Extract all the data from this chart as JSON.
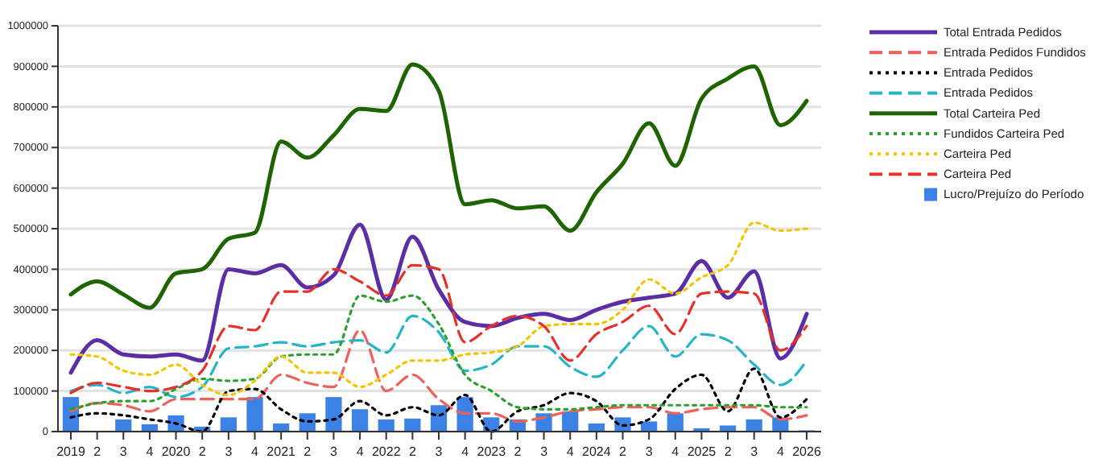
{
  "chart_data": {
    "type": "line",
    "categories": [
      "2019",
      "2",
      "3",
      "4",
      "2020",
      "2",
      "3",
      "4",
      "2021",
      "2",
      "3",
      "4",
      "2022",
      "2",
      "3",
      "4",
      "2023",
      "2",
      "3",
      "4",
      "2024",
      "2",
      "3",
      "4",
      "2025",
      "2",
      "3",
      "4",
      "2026"
    ],
    "ylim": [
      0,
      1000000
    ],
    "yticks": [
      0,
      100000,
      200000,
      300000,
      400000,
      500000,
      600000,
      700000,
      800000,
      900000,
      1000000
    ],
    "grid": "y",
    "legend": "right",
    "series": [
      {
        "name": "Total Entrada Pedidos",
        "color": "#5b2ea6",
        "line_style": "solid",
        "values": [
          145000,
          225000,
          190000,
          185000,
          190000,
          175000,
          400000,
          390000,
          410000,
          355000,
          385000,
          510000,
          325000,
          480000,
          350000,
          270000,
          260000,
          280000,
          290000,
          275000,
          300000,
          320000,
          330000,
          340000,
          420000,
          330000,
          395000,
          180000,
          290000
        ]
      },
      {
        "name": "Entrada Pedidos Fundidos",
        "color": "#f0605a",
        "line_style": "dashed",
        "values": [
          50000,
          70000,
          65000,
          50000,
          80000,
          80000,
          80000,
          80000,
          140000,
          120000,
          110000,
          250000,
          100000,
          140000,
          80000,
          45000,
          45000,
          25000,
          35000,
          50000,
          55000,
          60000,
          60000,
          45000,
          55000,
          60000,
          60000,
          30000,
          40000
        ]
      },
      {
        "name": "Entrada Pedidos",
        "color": "#000000",
        "line_style": "dotted",
        "values": [
          35000,
          45000,
          40000,
          30000,
          20000,
          0,
          100000,
          105000,
          55000,
          25000,
          30000,
          75000,
          40000,
          60000,
          40000,
          90000,
          0,
          50000,
          65000,
          95000,
          75000,
          15000,
          30000,
          105000,
          140000,
          50000,
          155000,
          35000,
          80000
        ]
      },
      {
        "name": "Entrada Pedidos",
        "color": "#26b5c7",
        "line_style": "dashed",
        "values": [
          100000,
          115000,
          95000,
          110000,
          85000,
          110000,
          205000,
          210000,
          220000,
          210000,
          220000,
          225000,
          195000,
          285000,
          245000,
          150000,
          165000,
          210000,
          210000,
          160000,
          135000,
          200000,
          260000,
          185000,
          240000,
          225000,
          165000,
          115000,
          175000
        ]
      },
      {
        "name": "Total Carteira Ped",
        "color": "#1e6400",
        "line_style": "solid",
        "values": [
          338000,
          370000,
          338000,
          305000,
          390000,
          400000,
          475000,
          490000,
          715000,
          675000,
          730000,
          795000,
          790000,
          905000,
          840000,
          560000,
          570000,
          550000,
          555000,
          495000,
          590000,
          660000,
          760000,
          655000,
          820000,
          870000,
          900000,
          755000,
          815000
        ]
      },
      {
        "name": "Fundidos Carteira Ped",
        "color": "#2ca02c",
        "line_style": "dotted",
        "values": [
          55000,
          70000,
          75000,
          75000,
          105000,
          130000,
          125000,
          130000,
          185000,
          190000,
          190000,
          335000,
          320000,
          335000,
          265000,
          140000,
          100000,
          60000,
          55000,
          55000,
          60000,
          65000,
          65000,
          65000,
          65000,
          65000,
          65000,
          60000,
          60000
        ]
      },
      {
        "name": "Carteira Ped",
        "color": "#f5c400",
        "line_style": "dotted",
        "values": [
          190000,
          185000,
          150000,
          140000,
          165000,
          115000,
          90000,
          125000,
          185000,
          145000,
          145000,
          110000,
          140000,
          175000,
          175000,
          190000,
          195000,
          210000,
          260000,
          265000,
          265000,
          300000,
          375000,
          340000,
          380000,
          410000,
          515000,
          495000,
          500000
        ]
      },
      {
        "name": "Carteira Ped",
        "color": "#e8302a",
        "line_style": "dashed",
        "values": [
          95000,
          120000,
          110000,
          100000,
          110000,
          150000,
          260000,
          250000,
          345000,
          345000,
          400000,
          370000,
          335000,
          410000,
          400000,
          220000,
          260000,
          285000,
          260000,
          175000,
          240000,
          270000,
          310000,
          240000,
          340000,
          345000,
          340000,
          200000,
          260000
        ]
      },
      {
        "name": "Lucro/Prejuízo do Período",
        "type": "bar",
        "color": "#3c82e6",
        "values": [
          85000,
          0,
          30000,
          18000,
          40000,
          12000,
          35000,
          85000,
          20000,
          45000,
          85000,
          55000,
          30000,
          32000,
          65000,
          85000,
          35000,
          30000,
          45000,
          50000,
          20000,
          35000,
          25000,
          45000,
          8000,
          15000,
          30000,
          35000,
          3000
        ]
      }
    ]
  }
}
